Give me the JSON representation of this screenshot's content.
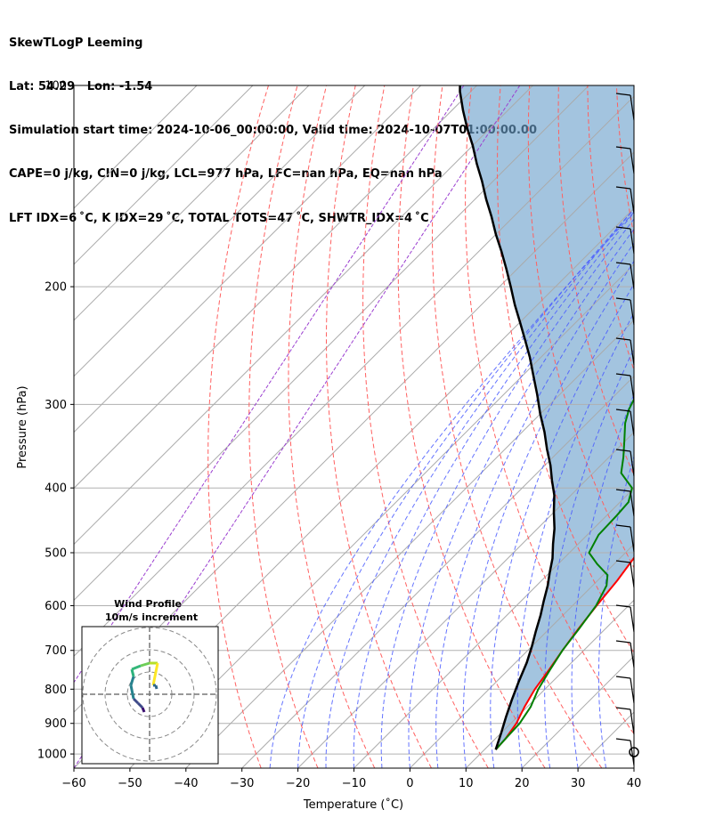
{
  "header": {
    "line1": "SkewTLogP Leeming",
    "line2": "Lat: 54.29   Lon: -1.54",
    "line3": "Simulation start time: 2024-10-06_00:00:00, Valid time: 2024-10-07T01:00:00.00",
    "line4": "CAPE=0 j/kg, CIN=0 j/kg, LCL=977 hPa, LFC=nan hPa, EQ=nan hPa",
    "line5": "LFT IDX=6 ˚C, K IDX=29 ˚C, TOTAL TOTS=47 ˚C, SHWTR_IDX=4 ˚C"
  },
  "chart_data": {
    "type": "line",
    "subtype": "skewT-logP",
    "xlabel": "Temperature (˚C)",
    "ylabel": "Pressure (hPa)",
    "xlim": [
      -60,
      40
    ],
    "ylim": [
      1050,
      100
    ],
    "y_scale": "log",
    "x_ticks": [
      "−60",
      "−50",
      "−40",
      "−30",
      "−20",
      "−10",
      "0",
      "10",
      "20",
      "30",
      "40"
    ],
    "y_ticks": [
      "100",
      "200",
      "300",
      "400",
      "500",
      "600",
      "700",
      "800",
      "900",
      "1000"
    ],
    "grid": true,
    "series": [
      {
        "color": "#ff0000",
        "points": [
          [
            12,
            985
          ],
          [
            11.8,
            950
          ],
          [
            11,
            900
          ],
          [
            9.5,
            850
          ],
          [
            8.2,
            800
          ],
          [
            7.3,
            750
          ],
          [
            6.2,
            700
          ],
          [
            5.2,
            650
          ],
          [
            4.3,
            600
          ],
          [
            3.5,
            550
          ],
          [
            2.2,
            500
          ],
          [
            -0.5,
            470
          ],
          [
            -3,
            440
          ],
          [
            -4.5,
            420
          ],
          [
            -7,
            380
          ],
          [
            -9.5,
            350
          ],
          [
            -11.5,
            330
          ],
          [
            -13.5,
            310
          ],
          [
            -13.8,
            295
          ],
          [
            -12.5,
            282
          ],
          [
            -10.8,
            268
          ],
          [
            -9,
            255
          ],
          [
            -7,
            243
          ],
          [
            -5.2,
            233
          ],
          [
            -4.5,
            220
          ],
          [
            -4.4,
            210
          ],
          [
            -4.8,
            200
          ],
          [
            -5.8,
            190
          ],
          [
            -6.8,
            180
          ],
          [
            -7.3,
            170
          ],
          [
            -8.4,
            160
          ],
          [
            -9.5,
            150
          ],
          [
            -10.6,
            140
          ],
          [
            -12.2,
            130
          ],
          [
            -13.8,
            120
          ],
          [
            -15.2,
            110
          ],
          [
            -16.2,
            100
          ]
        ]
      },
      {
        "color": "#008000",
        "points": [
          [
            12,
            985
          ],
          [
            11.8,
            950
          ],
          [
            11.6,
            900
          ],
          [
            10.6,
            850
          ],
          [
            8.8,
            800
          ],
          [
            7.5,
            750
          ],
          [
            6.2,
            700
          ],
          [
            5.3,
            650
          ],
          [
            4.2,
            600
          ],
          [
            2.5,
            560
          ],
          [
            0.8,
            540
          ],
          [
            -3,
            520
          ],
          [
            -6.5,
            500
          ],
          [
            -8,
            470
          ],
          [
            -8.2,
            440
          ],
          [
            -8.5,
            420
          ],
          [
            -10.4,
            400
          ],
          [
            -15,
            380
          ],
          [
            -17.4,
            360
          ],
          [
            -20.2,
            340
          ],
          [
            -23.2,
            320
          ],
          [
            -25,
            305
          ],
          [
            -26.3,
            290
          ],
          [
            -28.3,
            270
          ],
          [
            -29.4,
            255
          ],
          [
            -29.6,
            240
          ],
          [
            -30.3,
            228
          ],
          [
            -31.3,
            212
          ],
          [
            -32.3,
            200
          ],
          [
            -33.5,
            190
          ],
          [
            -34.3,
            180
          ],
          [
            -34.5,
            170
          ],
          [
            -34.6,
            160
          ],
          [
            -34.7,
            150
          ],
          [
            -34.8,
            140
          ],
          [
            -34.4,
            130
          ],
          [
            -33.2,
            120
          ],
          [
            -31.5,
            110
          ],
          [
            -29.6,
            100
          ]
        ]
      },
      {
        "color": "#000000",
        "points": [
          [
            12,
            985
          ],
          [
            10,
            930
          ],
          [
            8,
            880
          ],
          [
            6,
            830
          ],
          [
            4,
            780
          ],
          [
            2,
            730
          ],
          [
            0,
            690
          ],
          [
            -2,
            655
          ],
          [
            -4,
            620
          ],
          [
            -6,
            590
          ],
          [
            -8,
            560
          ],
          [
            -10,
            535
          ],
          [
            -12,
            510
          ],
          [
            -14.5,
            485
          ],
          [
            -17,
            460
          ],
          [
            -20,
            435
          ],
          [
            -23,
            410
          ],
          [
            -26,
            390
          ],
          [
            -29,
            370
          ],
          [
            -32.5,
            350
          ],
          [
            -36,
            330
          ],
          [
            -40,
            310
          ],
          [
            -44,
            290
          ],
          [
            -48,
            272
          ],
          [
            -52,
            255
          ],
          [
            -56,
            240
          ],
          [
            -60,
            226
          ],
          [
            -64,
            213
          ],
          [
            -68,
            200
          ],
          [
            -72,
            188
          ],
          [
            -76,
            177
          ],
          [
            -80,
            167
          ],
          [
            -84,
            157
          ],
          [
            -88,
            148
          ],
          [
            -92,
            139
          ],
          [
            -96,
            131
          ],
          [
            -100,
            123
          ],
          [
            -104,
            116
          ],
          [
            -108,
            109
          ],
          [
            -112,
            102
          ],
          [
            -113,
            100
          ]
        ]
      }
    ],
    "inset": {
      "title": "Wind Profile",
      "subtitle": "10m/s increment"
    }
  }
}
